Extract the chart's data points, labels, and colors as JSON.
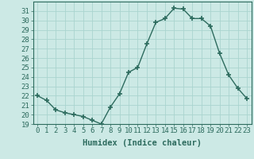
{
  "x": [
    0,
    1,
    2,
    3,
    4,
    5,
    6,
    7,
    8,
    9,
    10,
    11,
    12,
    13,
    14,
    15,
    16,
    17,
    18,
    19,
    20,
    21,
    22,
    23
  ],
  "y": [
    22,
    21.5,
    20.5,
    20.2,
    20.0,
    19.8,
    19.4,
    19.0,
    20.8,
    22.2,
    24.5,
    25.0,
    27.5,
    29.8,
    30.2,
    31.3,
    31.2,
    30.2,
    30.2,
    29.4,
    26.5,
    24.2,
    22.8,
    21.7
  ],
  "line_color": "#2d6b5e",
  "marker": "+",
  "marker_size": 4,
  "bg_color": "#cce9e5",
  "grid_color": "#aad4cf",
  "xlabel": "Humidex (Indice chaleur)",
  "xlim": [
    -0.5,
    23.5
  ],
  "ylim": [
    19,
    32
  ],
  "yticks": [
    19,
    20,
    21,
    22,
    23,
    24,
    25,
    26,
    27,
    28,
    29,
    30,
    31
  ],
  "xticks": [
    0,
    1,
    2,
    3,
    4,
    5,
    6,
    7,
    8,
    9,
    10,
    11,
    12,
    13,
    14,
    15,
    16,
    17,
    18,
    19,
    20,
    21,
    22,
    23
  ],
  "tick_label_fontsize": 6.5,
  "xlabel_fontsize": 7.5,
  "line_width": 1.0
}
